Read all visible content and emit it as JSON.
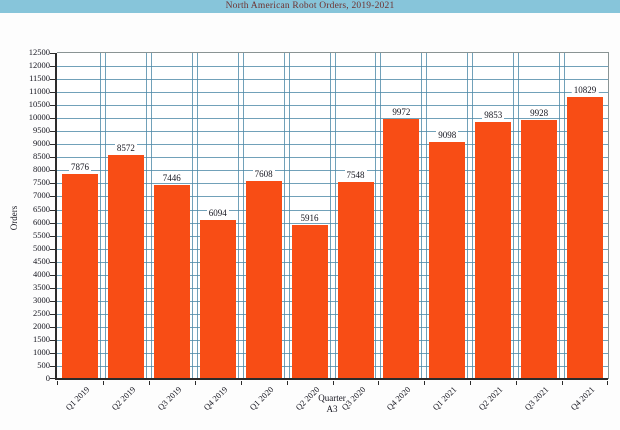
{
  "window": {
    "title": "North American Robot Orders, 2019-2021"
  },
  "chart_data": {
    "type": "bar",
    "title": "North American Robot Orders, 2019-2021",
    "categories": [
      "Q1 2019",
      "Q2 2019",
      "Q3 2019",
      "Q4 2019",
      "Q1 2020",
      "Q2 2020",
      "Q3 2020",
      "Q4 2020",
      "Q1 2021",
      "Q2 2021",
      "Q3 2021",
      "Q4 2021"
    ],
    "values": [
      7876,
      8572,
      7446,
      6094,
      7608,
      5916,
      7548,
      9972,
      9098,
      9853,
      9928,
      10829
    ],
    "xlabel": "Quarter",
    "xlabel_sub": "A3",
    "ylabel": "Orders",
    "ylim": [
      0,
      12500
    ],
    "ytick_step": 500,
    "grid": true,
    "legend": false,
    "data_labels": true,
    "colors": {
      "bar": "#f84d15",
      "grid": "#4e8aa8",
      "axis": "#2b2b2b",
      "titlebar_bg": "#87c5da",
      "title_text": "#6e3230"
    }
  }
}
